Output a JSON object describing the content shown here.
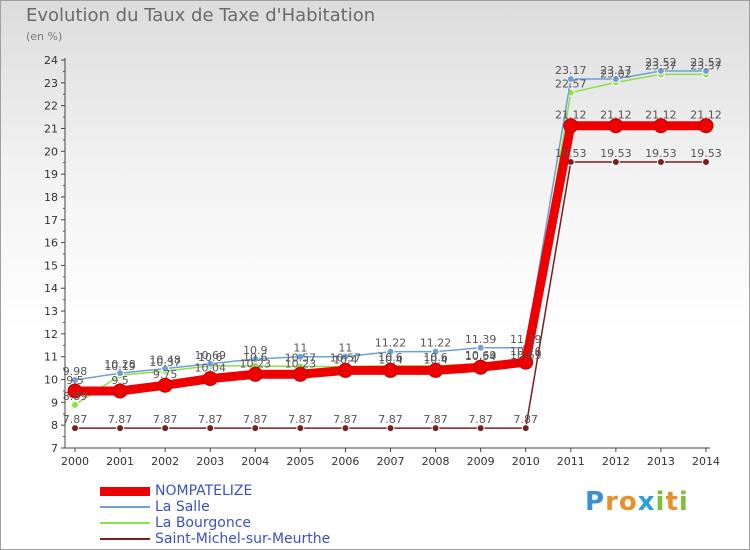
{
  "title": "Evolution du Taux de Taxe d'Habitation",
  "subtitle": "(en %)",
  "brand": {
    "letters": [
      "P",
      "r",
      "o",
      "x",
      "i",
      "t",
      "i"
    ],
    "colors": [
      "#3a8fd0",
      "#e8902a",
      "#e8902a",
      "#2aa0d8",
      "#7cc03a",
      "#e8902a",
      "#7cc03a"
    ]
  },
  "chart_data": {
    "type": "line",
    "x": [
      "2000",
      "2001",
      "2002",
      "2003",
      "2004",
      "2005",
      "2006",
      "2007",
      "2008",
      "2009",
      "2010",
      "2011",
      "2012",
      "2013",
      "2014"
    ],
    "ylim": [
      7,
      24
    ],
    "yticks": [
      "7",
      "8",
      "9",
      "10",
      "11",
      "12",
      "13",
      "14",
      "15",
      "16",
      "17",
      "18",
      "19",
      "20",
      "21",
      "22",
      "23",
      "24"
    ],
    "grid": false,
    "legend_position": "bottom-left",
    "series": [
      {
        "name": "NOMPATELIZE",
        "color": "#ee0000",
        "line_width": 9,
        "values": [
          9.5,
          9.5,
          9.75,
          10.04,
          10.23,
          10.23,
          10.4,
          10.4,
          10.4,
          10.54,
          10.76,
          21.12,
          21.12,
          21.12,
          21.12
        ],
        "labels": [
          "9.5",
          "9.5",
          "9.75",
          "10.04",
          "10.23",
          "10.23",
          "10.4",
          "10.4",
          "10.4",
          "10.54",
          "10.76",
          "21.12",
          "21.12",
          "21.12",
          "21.12"
        ]
      },
      {
        "name": "La Salle",
        "color": "#6f9fd6",
        "line_width": 1.5,
        "values": [
          9.98,
          10.28,
          10.48,
          10.69,
          10.9,
          11,
          11,
          11.22,
          11.22,
          11.39,
          11.39,
          23.17,
          23.17,
          23.52,
          23.52
        ],
        "labels": [
          "9.98",
          "10.28",
          "10.48",
          "10.69",
          "10.9",
          "11",
          "11",
          "11.22",
          "11.22",
          "11.39",
          "11.39",
          "23.17",
          "23.17",
          "23.52",
          "23.52"
        ]
      },
      {
        "name": "La Bourgonce",
        "color": "#8ee04a",
        "line_width": 1.5,
        "values": [
          8.89,
          10.19,
          10.37,
          10.6,
          10.6,
          10.57,
          10.57,
          10.6,
          10.6,
          10.69,
          10.69,
          22.57,
          23.02,
          23.37,
          23.37
        ],
        "labels": [
          "8.89",
          "10.19",
          "10.37",
          "10.6",
          "10.6",
          "10.57",
          "10.57",
          "10.6",
          "10.6",
          "10.69",
          "10.69",
          "22.57",
          "23.02",
          "23.37",
          "23.37"
        ]
      },
      {
        "name": "Saint-Michel-sur-Meurthe",
        "color": "#7a1e1e",
        "line_width": 1.5,
        "values": [
          7.87,
          7.87,
          7.87,
          7.87,
          7.87,
          7.87,
          7.87,
          7.87,
          7.87,
          7.87,
          7.87,
          19.53,
          19.53,
          19.53,
          19.53
        ],
        "labels": [
          "7.87",
          "7.87",
          "7.87",
          "7.87",
          "7.87",
          "7.87",
          "7.87",
          "7.87",
          "7.87",
          "7.87",
          "7.87",
          "19.53",
          "19.53",
          "19.53",
          "19.53"
        ]
      }
    ]
  }
}
